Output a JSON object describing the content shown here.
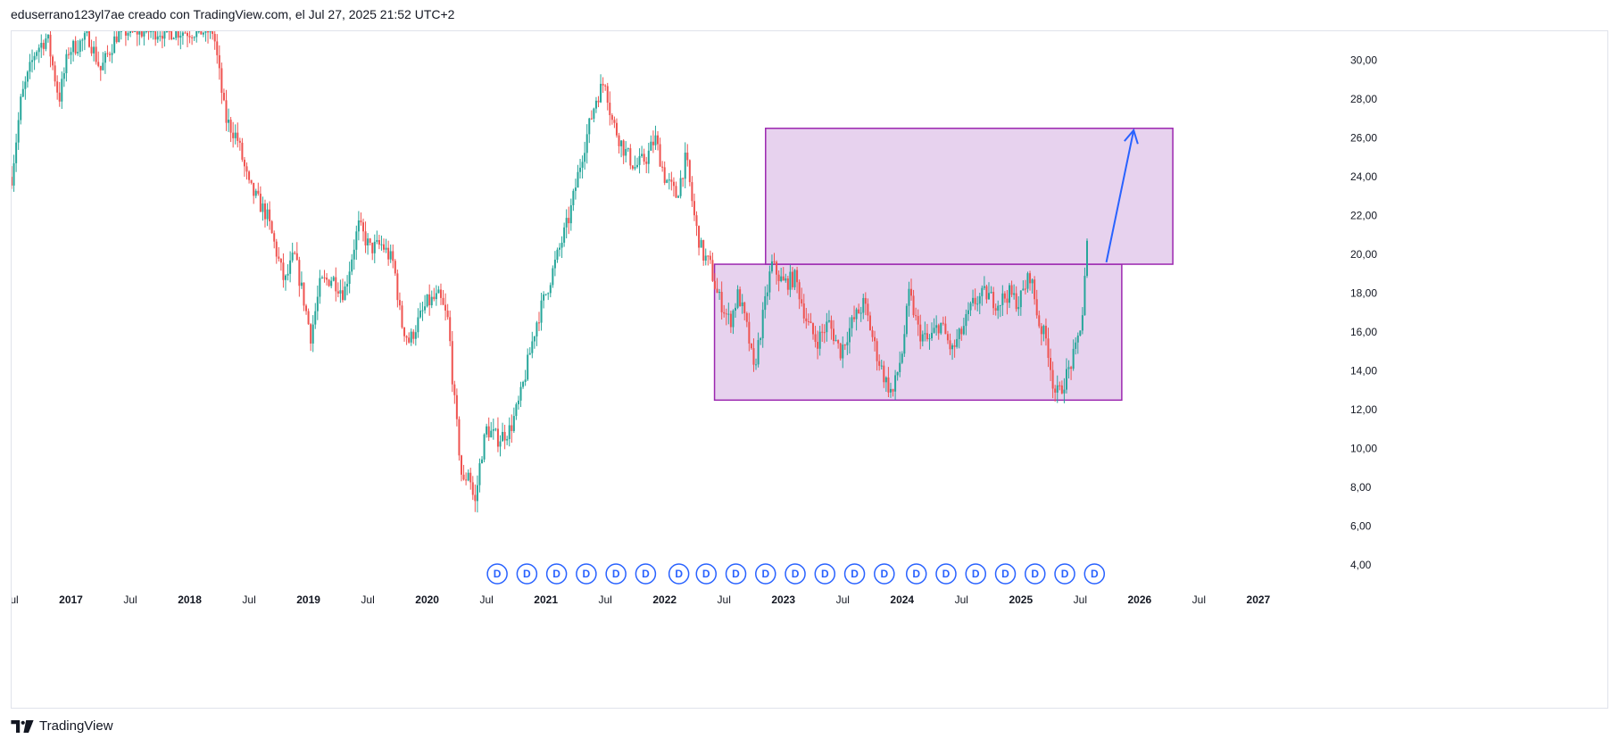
{
  "header": {
    "text": "eduserrano123yl7ae creado con TradingView.com, el Jul 27, 2025 21:52 UTC+2"
  },
  "footer": {
    "brand": "TradingView"
  },
  "colors": {
    "up": "#26a69a",
    "down": "#ef5350",
    "zone_fill": "#e7d2ee",
    "zone_stroke": "#9c27b0",
    "arrow": "#2962ff",
    "marker": "#2962ff"
  },
  "chart_data": {
    "type": "candlestick",
    "timeframe": "weekly",
    "price_axis": {
      "ticks": [
        "4,00",
        "6,00",
        "8,00",
        "10,00",
        "12,00",
        "14,00",
        "16,00",
        "18,00",
        "20,00",
        "22,00",
        "24,00",
        "26,00",
        "28,00",
        "30,00"
      ],
      "range": [
        3.0,
        31.5
      ]
    },
    "time_axis": {
      "range": [
        2016.5,
        2027.7
      ],
      "ticks": [
        {
          "label": "Jul",
          "t": 2016.5,
          "bold": false
        },
        {
          "label": "2017",
          "t": 2017.0,
          "bold": true
        },
        {
          "label": "Jul",
          "t": 2017.5,
          "bold": false
        },
        {
          "label": "2018",
          "t": 2018.0,
          "bold": true
        },
        {
          "label": "Jul",
          "t": 2018.5,
          "bold": false
        },
        {
          "label": "2019",
          "t": 2019.0,
          "bold": true
        },
        {
          "label": "Jul",
          "t": 2019.5,
          "bold": false
        },
        {
          "label": "2020",
          "t": 2020.0,
          "bold": true
        },
        {
          "label": "Jul",
          "t": 2020.5,
          "bold": false
        },
        {
          "label": "2021",
          "t": 2021.0,
          "bold": true
        },
        {
          "label": "Jul",
          "t": 2021.5,
          "bold": false
        },
        {
          "label": "2022",
          "t": 2022.0,
          "bold": true
        },
        {
          "label": "Jul",
          "t": 2022.5,
          "bold": false
        },
        {
          "label": "2023",
          "t": 2023.0,
          "bold": true
        },
        {
          "label": "Jul",
          "t": 2023.5,
          "bold": false
        },
        {
          "label": "2024",
          "t": 2024.0,
          "bold": true
        },
        {
          "label": "Jul",
          "t": 2024.5,
          "bold": false
        },
        {
          "label": "2025",
          "t": 2025.0,
          "bold": true
        },
        {
          "label": "Jul",
          "t": 2025.5,
          "bold": false
        },
        {
          "label": "2026",
          "t": 2026.0,
          "bold": true
        },
        {
          "label": "Jul",
          "t": 2026.5,
          "bold": false
        },
        {
          "label": "2027",
          "t": 2027.0,
          "bold": true
        }
      ]
    },
    "price_path": [
      [
        2016.5,
        24.0
      ],
      [
        2016.58,
        28.0
      ],
      [
        2016.7,
        30.5
      ],
      [
        2016.8,
        31.2
      ],
      [
        2016.9,
        28.0
      ],
      [
        2016.98,
        30.5
      ],
      [
        2017.15,
        31.2
      ],
      [
        2017.25,
        29.5
      ],
      [
        2017.4,
        31.5
      ],
      [
        2018.2,
        31.5
      ],
      [
        2018.3,
        27.0
      ],
      [
        2018.4,
        26.0
      ],
      [
        2018.5,
        23.5
      ],
      [
        2018.65,
        22.0
      ],
      [
        2018.8,
        18.5
      ],
      [
        2018.88,
        20.0
      ],
      [
        2018.95,
        18.0
      ],
      [
        2019.02,
        15.8
      ],
      [
        2019.1,
        18.5
      ],
      [
        2019.2,
        18.8
      ],
      [
        2019.3,
        18.0
      ],
      [
        2019.42,
        21.5
      ],
      [
        2019.52,
        20.3
      ],
      [
        2019.62,
        20.5
      ],
      [
        2019.72,
        19.5
      ],
      [
        2019.78,
        16.5
      ],
      [
        2019.85,
        15.5
      ],
      [
        2019.92,
        16.5
      ],
      [
        2020.0,
        17.5
      ],
      [
        2020.1,
        17.8
      ],
      [
        2020.18,
        16.5
      ],
      [
        2020.22,
        13.0
      ],
      [
        2020.26,
        10.5
      ],
      [
        2020.3,
        8.0
      ],
      [
        2020.35,
        9.0
      ],
      [
        2020.4,
        7.0
      ],
      [
        2020.45,
        9.5
      ],
      [
        2020.5,
        11.0
      ],
      [
        2020.6,
        10.5
      ],
      [
        2020.7,
        11.0
      ],
      [
        2020.78,
        12.5
      ],
      [
        2020.85,
        14.5
      ],
      [
        2020.92,
        16.5
      ],
      [
        2021.0,
        18.0
      ],
      [
        2021.1,
        20.0
      ],
      [
        2021.2,
        22.0
      ],
      [
        2021.3,
        25.0
      ],
      [
        2021.42,
        28.0
      ],
      [
        2021.5,
        29.0
      ],
      [
        2021.55,
        27.0
      ],
      [
        2021.65,
        25.5
      ],
      [
        2021.75,
        24.5
      ],
      [
        2021.85,
        25.0
      ],
      [
        2021.92,
        26.0
      ],
      [
        2022.0,
        24.0
      ],
      [
        2022.1,
        23.0
      ],
      [
        2022.18,
        25.0
      ],
      [
        2022.26,
        21.5
      ],
      [
        2022.32,
        20.0
      ],
      [
        2022.38,
        19.5
      ],
      [
        2022.44,
        18.0
      ],
      [
        2022.55,
        16.5
      ],
      [
        2022.62,
        18.0
      ],
      [
        2022.7,
        16.0
      ],
      [
        2022.75,
        14.0
      ],
      [
        2022.82,
        16.5
      ],
      [
        2022.9,
        19.5
      ],
      [
        2023.0,
        18.5
      ],
      [
        2023.1,
        18.8
      ],
      [
        2023.2,
        16.5
      ],
      [
        2023.28,
        15.5
      ],
      [
        2023.38,
        16.5
      ],
      [
        2023.48,
        15.0
      ],
      [
        2023.58,
        16.5
      ],
      [
        2023.68,
        17.5
      ],
      [
        2023.78,
        15.0
      ],
      [
        2023.86,
        13.5
      ],
      [
        2023.92,
        12.8
      ],
      [
        2024.0,
        15.0
      ],
      [
        2024.06,
        18.0
      ],
      [
        2024.14,
        16.0
      ],
      [
        2024.22,
        15.5
      ],
      [
        2024.32,
        16.5
      ],
      [
        2024.42,
        15.0
      ],
      [
        2024.5,
        16.0
      ],
      [
        2024.6,
        17.5
      ],
      [
        2024.7,
        18.0
      ],
      [
        2024.8,
        17.5
      ],
      [
        2024.9,
        18.0
      ],
      [
        2024.98,
        17.5
      ],
      [
        2025.08,
        19.0
      ],
      [
        2025.15,
        16.5
      ],
      [
        2025.22,
        15.5
      ],
      [
        2025.28,
        13.0
      ],
      [
        2025.32,
        12.8
      ],
      [
        2025.4,
        14.0
      ],
      [
        2025.46,
        15.0
      ],
      [
        2025.52,
        17.0
      ],
      [
        2025.55,
        19.8
      ],
      [
        2025.57,
        21.5
      ]
    ],
    "zones": [
      {
        "t0": 2022.42,
        "t1": 2025.85,
        "p0": 12.5,
        "p1": 19.5
      },
      {
        "t0": 2022.85,
        "t1": 2026.28,
        "p0": 19.5,
        "p1": 26.5
      }
    ],
    "arrow": {
      "t0": 2025.72,
      "p0": 19.6,
      "t1": 2025.95,
      "p1": 26.4
    },
    "markers": {
      "label": "D",
      "t": [
        2020.59,
        2020.84,
        2021.09,
        2021.34,
        2021.59,
        2021.84,
        2022.12,
        2022.35,
        2022.6,
        2022.85,
        2023.1,
        2023.35,
        2023.6,
        2023.85,
        2024.12,
        2024.37,
        2024.62,
        2024.87,
        2025.12,
        2025.37,
        2025.62
      ]
    }
  }
}
